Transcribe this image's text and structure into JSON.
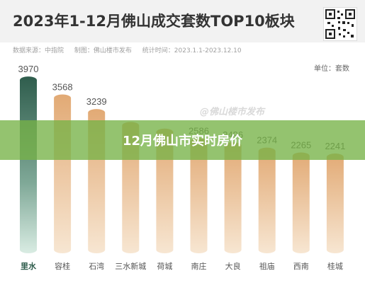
{
  "header": {
    "title": "2023年1-12月佛山成交套数TOP10板块"
  },
  "meta": {
    "source": "数据来源：中指院",
    "maker": "制图：佛山楼市发布",
    "period": "统计时间：2023.1.1-2023.12.10"
  },
  "unit": "单位：套数",
  "watermark": "@佛山楼市发布",
  "banner": {
    "text": "12月佛山市实时房价"
  },
  "colors": {
    "highlight_bar": "#3d6b5a",
    "bar": "#e8b98a",
    "banner": "#76b246"
  },
  "chart_data": {
    "type": "bar",
    "categories": [
      "里水",
      "容桂",
      "石湾",
      "三水新城",
      "荷城",
      "南庄",
      "大良",
      "祖庙",
      "西南",
      "桂城"
    ],
    "values": [
      3970,
      3568,
      3239,
      2950,
      2800,
      2586,
      2496,
      2374,
      2265,
      2241
    ],
    "value_labels": [
      "3970",
      "3568",
      "3239",
      "",
      "",
      "2586",
      "2496",
      "2374",
      "2265",
      "2241"
    ],
    "title": "2023年1-12月佛山成交套数TOP10板块",
    "xlabel": "",
    "ylabel": "",
    "ylim": [
      0,
      4100
    ],
    "grid": false,
    "legend": "none"
  }
}
